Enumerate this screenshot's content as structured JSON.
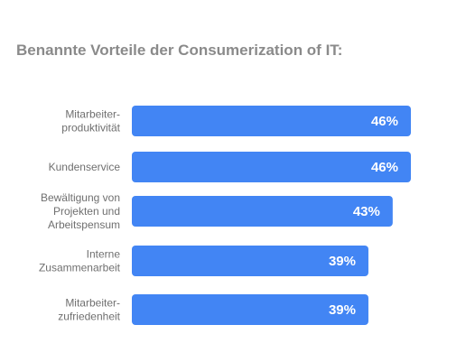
{
  "chart_data": {
    "type": "bar",
    "orientation": "horizontal",
    "title": "Benannte Vorteile der Consumerization of IT:",
    "categories": [
      [
        "Mitarbeiter-",
        "produktivität"
      ],
      [
        "Kundenservice"
      ],
      [
        "Bewältigung von",
        "Projekten und",
        "Arbeitspensum"
      ],
      [
        "Interne",
        "Zusammenarbeit"
      ],
      [
        "Mitarbeiter-",
        "zufriedenheit"
      ]
    ],
    "values": [
      46,
      46,
      43,
      39,
      39
    ],
    "value_labels": [
      "46%",
      "46%",
      "43%",
      "39%",
      "39%"
    ],
    "unit": "%",
    "bar_color": "#4285f4",
    "grid": false,
    "legend": "none"
  }
}
